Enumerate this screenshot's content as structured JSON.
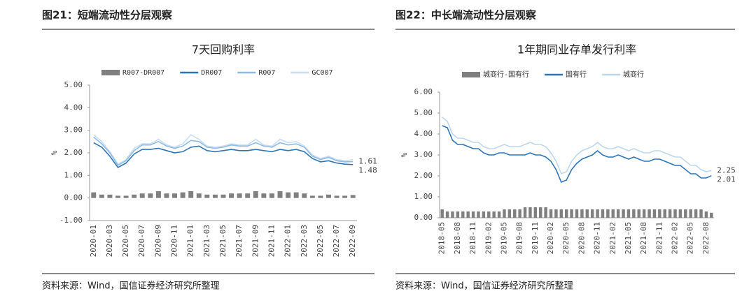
{
  "chart_data": [
    {
      "type": "line",
      "figure_title": "图21：短端流动性分层观察",
      "title": "7天回购利率",
      "ylabel": "%",
      "source": "资料来源：Wind，国信证券经济研究所整理",
      "categories": [
        "2020-01",
        null,
        "2020-03",
        null,
        "2020-05",
        null,
        "2020-07",
        null,
        "2020-09",
        null,
        "2020-11",
        null,
        "2021-01",
        null,
        "2021-03",
        null,
        "2021-05",
        null,
        "2021-07",
        null,
        "2021-09",
        null,
        "2021-11",
        null,
        "2022-01",
        null,
        "2022-03",
        null,
        "2022-05",
        null,
        "2022-07",
        null,
        "2022-09"
      ],
      "ylim": [
        -1,
        5
      ],
      "yticks": [
        {
          "value": -1,
          "label": "-1.00"
        },
        {
          "value": 0,
          "label": "0.00"
        },
        {
          "value": 1,
          "label": "1.00"
        },
        {
          "value": 2,
          "label": "2.00"
        },
        {
          "value": 3,
          "label": "3.00"
        },
        {
          "value": 4,
          "label": "4.00"
        },
        {
          "value": 5,
          "label": "5.00"
        }
      ],
      "series": [
        {
          "name": "R007-DR007",
          "type": "bar",
          "color": "#7f7f7f",
          "values": [
            0.25,
            0.15,
            0.15,
            0.1,
            0.1,
            0.15,
            0.2,
            0.2,
            0.3,
            0.2,
            0.2,
            0.25,
            0.3,
            0.2,
            0.15,
            0.15,
            0.15,
            0.2,
            0.2,
            0.2,
            0.3,
            0.2,
            0.2,
            0.3,
            0.25,
            0.25,
            0.2,
            0.1,
            0.1,
            0.15,
            0.1,
            0.1,
            0.13
          ]
        },
        {
          "name": "DR007",
          "type": "line",
          "color": "#2e75b6",
          "label_last": true,
          "values": [
            2.45,
            2.25,
            1.85,
            1.35,
            1.55,
            1.95,
            2.15,
            2.15,
            2.2,
            2.1,
            2.0,
            2.05,
            2.25,
            2.3,
            2.1,
            2.05,
            2.1,
            2.15,
            2.1,
            2.1,
            2.15,
            2.1,
            2.05,
            2.15,
            2.1,
            2.15,
            2.05,
            1.75,
            1.6,
            1.65,
            1.55,
            1.5,
            1.48
          ]
        },
        {
          "name": "R007",
          "type": "line",
          "color": "#8fbbe3",
          "label_last": true,
          "values": [
            2.7,
            2.4,
            2.0,
            1.45,
            1.65,
            2.1,
            2.35,
            2.35,
            2.5,
            2.3,
            2.2,
            2.3,
            2.55,
            2.5,
            2.25,
            2.2,
            2.25,
            2.35,
            2.3,
            2.3,
            2.45,
            2.3,
            2.25,
            2.45,
            2.35,
            2.4,
            2.25,
            1.85,
            1.7,
            1.8,
            1.65,
            1.6,
            1.61
          ]
        },
        {
          "name": "GC007",
          "type": "line",
          "color": "#c9def2",
          "values": [
            2.8,
            2.5,
            2.05,
            1.5,
            1.7,
            2.2,
            2.4,
            2.4,
            2.6,
            2.35,
            2.25,
            2.4,
            2.8,
            2.6,
            2.3,
            2.25,
            2.3,
            2.4,
            2.35,
            2.35,
            2.6,
            2.35,
            2.3,
            2.6,
            2.45,
            2.5,
            2.3,
            1.9,
            1.75,
            1.85,
            1.7,
            1.65,
            1.7
          ]
        }
      ]
    },
    {
      "type": "line",
      "figure_title": "图22：中长端流动性分层观察",
      "title": "1年期同业存单发行利率",
      "ylabel": "%",
      "source": "资料来源：Wind，国信证券经济研究所整理",
      "categories": [
        "2018-05",
        null,
        null,
        "2018-08",
        null,
        null,
        "2018-11",
        null,
        null,
        "2019-02",
        null,
        null,
        "2019-05",
        null,
        null,
        "2019-08",
        null,
        null,
        "2019-11",
        null,
        null,
        "2020-02",
        null,
        null,
        "2020-05",
        null,
        null,
        "2020-08",
        null,
        null,
        "2020-11",
        null,
        null,
        "2021-02",
        null,
        null,
        "2021-05",
        null,
        null,
        "2021-08",
        null,
        null,
        "2021-11",
        null,
        null,
        "2022-02",
        null,
        null,
        "2022-05",
        null,
        null,
        "2022-08",
        null
      ],
      "ylim": [
        0,
        6
      ],
      "yticks": [
        {
          "value": 0,
          "label": "0.00"
        },
        {
          "value": 1,
          "label": "1.00"
        },
        {
          "value": 2,
          "label": "2.00"
        },
        {
          "value": 3,
          "label": "3.00"
        },
        {
          "value": 4,
          "label": "4.00"
        },
        {
          "value": 5,
          "label": "5.00"
        },
        {
          "value": 6,
          "label": "6.00"
        }
      ],
      "series": [
        {
          "name": "城商行-国有行",
          "type": "bar",
          "color": "#7f7f7f",
          "values": [
            0.4,
            0.3,
            0.3,
            0.3,
            0.3,
            0.3,
            0.3,
            0.3,
            0.3,
            0.3,
            0.3,
            0.3,
            0.4,
            0.4,
            0.4,
            0.4,
            0.5,
            0.5,
            0.5,
            0.5,
            0.5,
            0.4,
            0.4,
            0.4,
            0.4,
            0.4,
            0.4,
            0.4,
            0.4,
            0.4,
            0.4,
            0.4,
            0.4,
            0.4,
            0.4,
            0.4,
            0.4,
            0.4,
            0.4,
            0.4,
            0.4,
            0.4,
            0.4,
            0.4,
            0.4,
            0.4,
            0.4,
            0.4,
            0.4,
            0.4,
            0.4,
            0.3,
            0.24
          ]
        },
        {
          "name": "国有行",
          "type": "line",
          "color": "#2e75b6",
          "label_last": true,
          "values": [
            4.4,
            4.3,
            3.7,
            3.5,
            3.5,
            3.4,
            3.3,
            3.3,
            3.1,
            3.0,
            3.0,
            3.1,
            3.1,
            3.0,
            3.0,
            3.0,
            3.0,
            3.1,
            3.0,
            3.0,
            2.9,
            2.7,
            2.3,
            1.7,
            1.8,
            2.3,
            2.6,
            2.8,
            2.9,
            3.0,
            3.2,
            3.0,
            2.9,
            2.9,
            3.0,
            2.9,
            2.8,
            2.9,
            2.8,
            2.7,
            2.7,
            2.8,
            2.8,
            2.7,
            2.6,
            2.5,
            2.5,
            2.3,
            2.1,
            2.1,
            1.9,
            1.9,
            2.01
          ]
        },
        {
          "name": "城商行",
          "type": "line",
          "color": "#bdd7ee",
          "label_last": true,
          "values": [
            4.8,
            4.6,
            4.0,
            3.8,
            3.8,
            3.7,
            3.6,
            3.6,
            3.4,
            3.3,
            3.3,
            3.4,
            3.5,
            3.4,
            3.4,
            3.4,
            3.5,
            3.6,
            3.5,
            3.5,
            3.4,
            3.1,
            2.7,
            2.1,
            2.2,
            2.7,
            3.0,
            3.2,
            3.3,
            3.4,
            3.6,
            3.4,
            3.3,
            3.3,
            3.4,
            3.3,
            3.2,
            3.3,
            3.2,
            3.1,
            3.1,
            3.2,
            3.2,
            3.1,
            3.0,
            2.9,
            2.9,
            2.7,
            2.5,
            2.5,
            2.3,
            2.2,
            2.25
          ]
        }
      ]
    }
  ]
}
